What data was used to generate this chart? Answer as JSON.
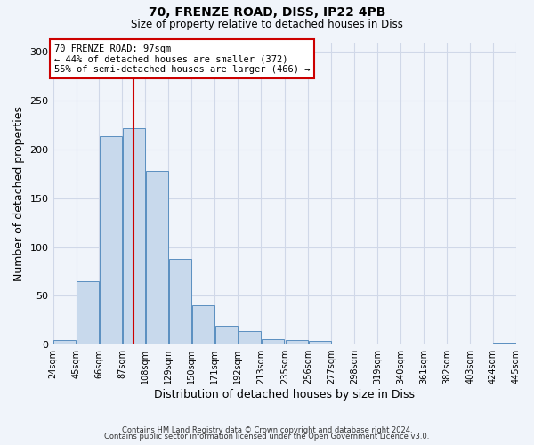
{
  "title1": "70, FRENZE ROAD, DISS, IP22 4PB",
  "title2": "Size of property relative to detached houses in Diss",
  "xlabel": "Distribution of detached houses by size in Diss",
  "ylabel": "Number of detached properties",
  "bar_left_edges": [
    24,
    45,
    66,
    87,
    108,
    129,
    150,
    171,
    192,
    213,
    235,
    256,
    277,
    298,
    319,
    340,
    361,
    382,
    403,
    424
  ],
  "bar_heights": [
    5,
    65,
    214,
    222,
    178,
    88,
    40,
    19,
    14,
    6,
    5,
    4,
    1,
    0,
    0,
    0,
    0,
    0,
    0,
    2
  ],
  "bin_width": 21,
  "bar_color": "#c8d9ec",
  "bar_edge_color": "#5a8fc0",
  "tick_labels": [
    "24sqm",
    "45sqm",
    "66sqm",
    "87sqm",
    "108sqm",
    "129sqm",
    "150sqm",
    "171sqm",
    "192sqm",
    "213sqm",
    "235sqm",
    "256sqm",
    "277sqm",
    "298sqm",
    "319sqm",
    "340sqm",
    "361sqm",
    "382sqm",
    "403sqm",
    "424sqm",
    "445sqm"
  ],
  "vline_x": 97,
  "vline_color": "#cc0000",
  "ylim": [
    0,
    310
  ],
  "yticks": [
    0,
    50,
    100,
    150,
    200,
    250,
    300
  ],
  "annotation_title": "70 FRENZE ROAD: 97sqm",
  "annotation_line1": "← 44% of detached houses are smaller (372)",
  "annotation_line2": "55% of semi-detached houses are larger (466) →",
  "annotation_box_color": "#ffffff",
  "annotation_box_edge": "#cc0000",
  "grid_color": "#d0d8e8",
  "background_color": "#f0f4fa",
  "footer1": "Contains HM Land Registry data © Crown copyright and database right 2024.",
  "footer2": "Contains public sector information licensed under the Open Government Licence v3.0."
}
